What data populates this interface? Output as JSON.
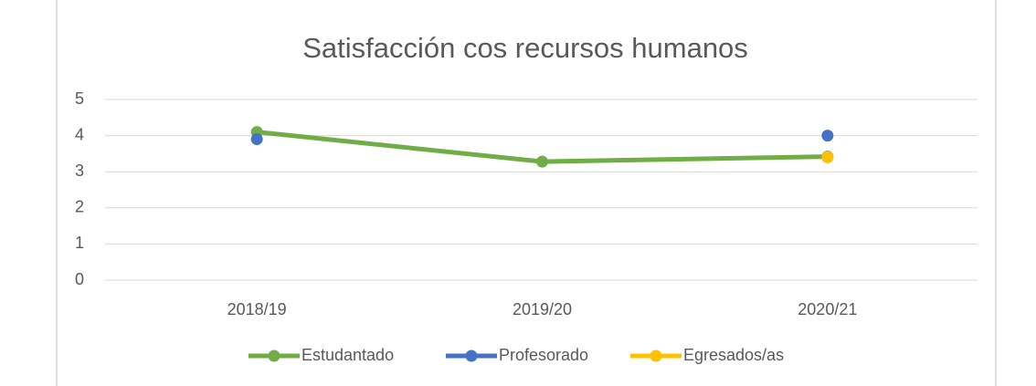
{
  "chart_data": {
    "type": "line",
    "title": "Satisfacción cos recursos humanos",
    "categories": [
      "2018/19",
      "2019/20",
      "2020/21"
    ],
    "series": [
      {
        "name": "Estudantado",
        "color": "#70ad47",
        "values": [
          4.1,
          3.28,
          3.42
        ]
      },
      {
        "name": "Profesorado",
        "color": "#4472c4",
        "values": [
          3.9,
          null,
          4.0
        ]
      },
      {
        "name": "Egresados/as",
        "color": "#ffc000",
        "values": [
          null,
          null,
          3.4
        ]
      }
    ],
    "ylim": [
      0,
      5
    ],
    "yticks": [
      0,
      1,
      2,
      3,
      4,
      5
    ],
    "grid": true,
    "legend": "bottom"
  }
}
